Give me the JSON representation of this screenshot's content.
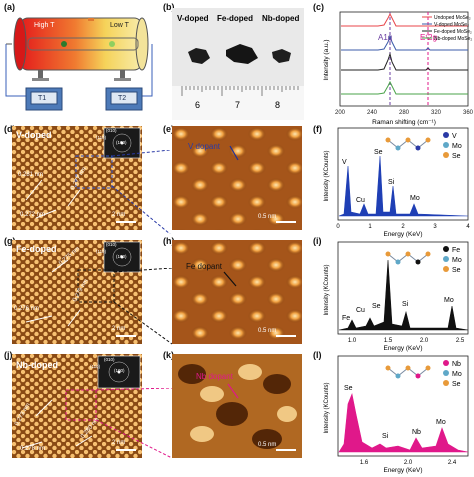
{
  "panels": {
    "a": {
      "label": "(a)",
      "high_t": "High T",
      "low_t": "Low T",
      "box1": "T1",
      "box2": "T2"
    },
    "b": {
      "label": "(b)",
      "captions": [
        "V-doped",
        "Fe-doped",
        "Nb-doped"
      ],
      "ruler_numbers": [
        "6",
        "7",
        "8"
      ]
    },
    "c": {
      "label": "(c)",
      "xlabel": "Raman shifting (cm⁻¹)",
      "ylabel": "Intensity (a.u.)",
      "peak1": "A1g",
      "peak2": "E¹2g",
      "legend": [
        "Undoped MoSe₂",
        "V-doped MoSe₂",
        "Fe-doped MoSe₂",
        "Nb-doped MoSe₂"
      ],
      "xticks": [
        "200",
        "240",
        "280",
        "320",
        "360"
      ]
    },
    "d": {
      "label": "(d)",
      "title": "V-doped",
      "spacings": [
        "0.281 nm",
        "0.277 nm",
        "0.272 nm"
      ],
      "scalebar": "2 nm",
      "fft": [
        "(010)",
        "(110)",
        "(100)"
      ]
    },
    "e": {
      "label": "(e)",
      "dopant": "V dopant",
      "scalebar": "0.5 nm"
    },
    "f": {
      "label": "(f)",
      "ylabel": "Intensity (KCounts)",
      "xlabel": "Energy (KeV)",
      "legend": [
        "V",
        "Mo",
        "Se"
      ],
      "peaks": [
        "V",
        "Cu",
        "Se",
        "Si",
        "Mo"
      ],
      "xticks": [
        "0",
        "1",
        "2",
        "3",
        "4"
      ]
    },
    "g": {
      "label": "(g)",
      "title": "Fe-doped",
      "spacings": [
        "0.275 nm",
        "0.276 nm",
        "0.279 nm"
      ],
      "scalebar": "2 nm",
      "fft": [
        "(010)",
        "(110)",
        "(100)"
      ]
    },
    "h": {
      "label": "(h)",
      "dopant": "Fe dopant",
      "scalebar": "0.5 nm"
    },
    "i": {
      "label": "(i)",
      "ylabel": "Intensity (KCounts)",
      "xlabel": "Energy (KeV)",
      "legend": [
        "Fe",
        "Mo",
        "Se"
      ],
      "peaks": [
        "Fe",
        "Cu",
        "Se",
        "Si",
        "Mo"
      ],
      "xticks": [
        "1.0",
        "1.5",
        "2.0",
        "2.5"
      ]
    },
    "j": {
      "label": "(j)",
      "title": "Nb-doped",
      "spacings": [
        "0.273 nm",
        "0.278 nm",
        "0.280 nm"
      ],
      "scalebar": "2 nm",
      "fft": [
        "(010)",
        "(110)",
        "(100)"
      ]
    },
    "k": {
      "label": "(k)",
      "dopant": "Nb dopant",
      "scalebar": "0.5 nm"
    },
    "l": {
      "label": "(l)",
      "ylabel": "Intensity (KCounts)",
      "xlabel": "Energy (KeV)",
      "legend": [
        "Nb",
        "Mo",
        "Se"
      ],
      "peaks": [
        "Se",
        "Si",
        "Nb",
        "Mo"
      ],
      "xticks": [
        "1.6",
        "2.0",
        "2.4"
      ]
    }
  },
  "colors": {
    "raman_undoped": "#e8454a",
    "raman_v": "#3b5ba8",
    "raman_fe": "#222222",
    "raman_nb": "#4aa34a",
    "marker_a1g": "#6a3ea0",
    "marker_e2g": "#e0188a",
    "eds_v": "#1f3fb5",
    "eds_fe": "#111111",
    "eds_nb": "#e0188a",
    "leader_v": "#2a3aa6",
    "leader_fe": "#111111",
    "leader_nb": "#e0188a"
  }
}
